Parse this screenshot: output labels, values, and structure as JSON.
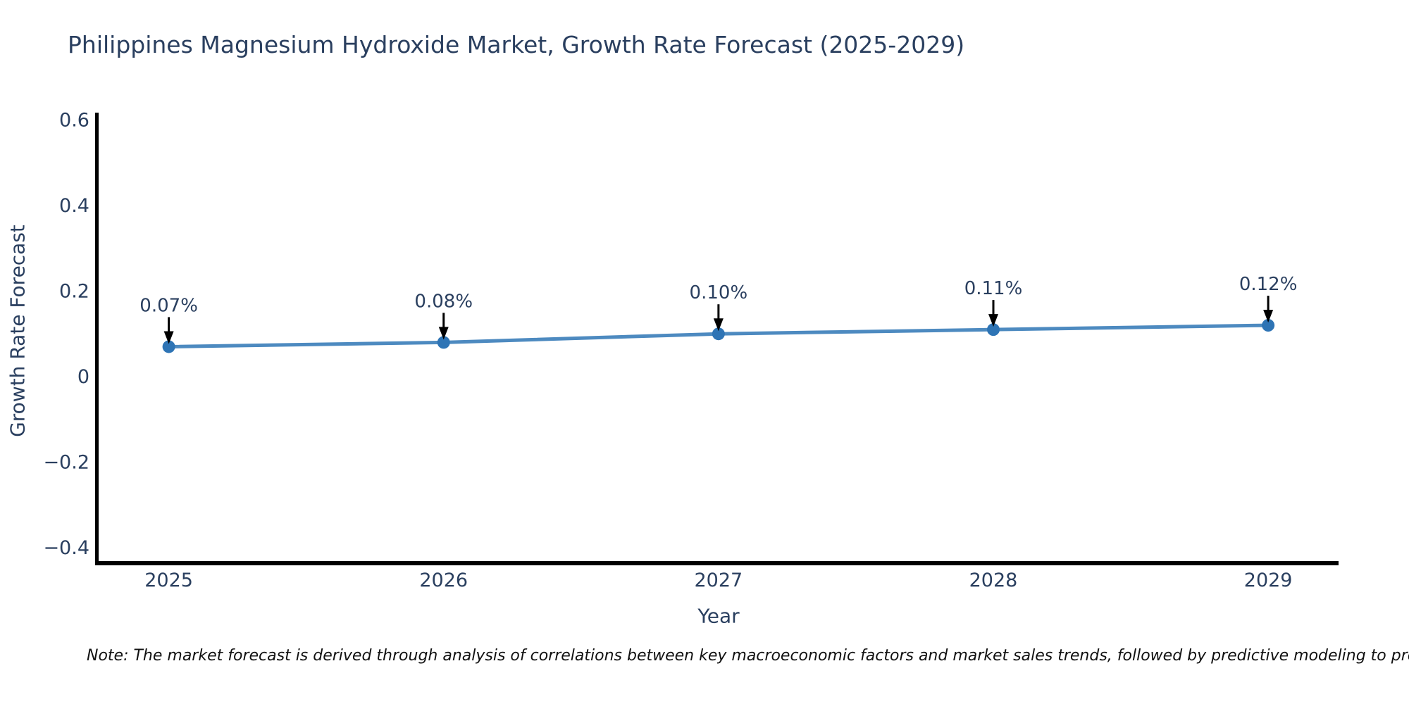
{
  "chart_data": {
    "type": "line",
    "title": "Philippines Magnesium Hydroxide Market, Growth Rate Forecast (2025-2029)",
    "xlabel": "Year",
    "ylabel": "Growth Rate Forecast",
    "x": [
      2025,
      2026,
      2027,
      2028,
      2029
    ],
    "values": [
      0.07,
      0.08,
      0.1,
      0.11,
      0.12
    ],
    "point_labels": [
      "0.07%",
      "0.08%",
      "0.10%",
      "0.11%",
      "0.12%"
    ],
    "xticks": [
      2025,
      2026,
      2027,
      2028,
      2029
    ],
    "xtick_labels": [
      "2025",
      "2026",
      "2027",
      "2028",
      "2029"
    ],
    "yticks": [
      -0.4,
      -0.2,
      0,
      0.2,
      0.4,
      0.6
    ],
    "ytick_labels": [
      "−0.4",
      "−0.2",
      "0",
      "0.2",
      "0.4",
      "0.6"
    ],
    "xlim": [
      2024.737,
      2029.256
    ],
    "ylim": [
      -0.436,
      0.617
    ],
    "grid": false,
    "legend": null,
    "note": "Note: The market forecast is derived through analysis of correlations between key macroeconomic factors and market sales trends, followed by predictive modeling to project future sales.",
    "colors": {
      "line": "#4d8ac0",
      "marker": "#2e74b5",
      "arrow": "#000000",
      "spine": "#000000",
      "text": "#2a3f5f"
    }
  }
}
